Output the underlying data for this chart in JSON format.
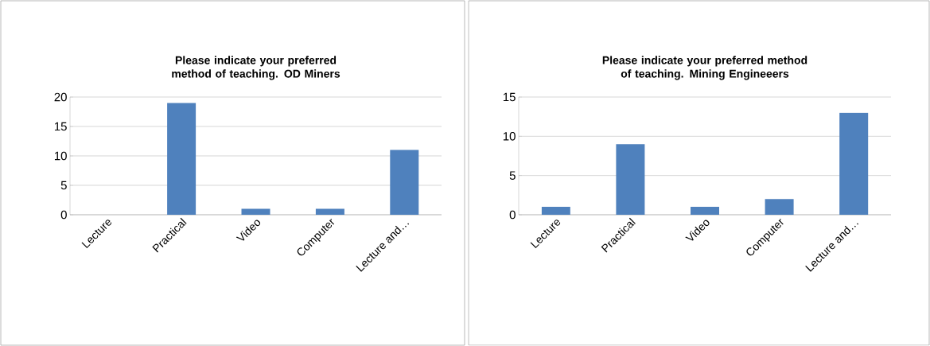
{
  "chart_data": [
    {
      "type": "bar",
      "title": "Please indicate your preferred method of teaching. OD Miners",
      "categories": [
        "Lecture",
        "Practical",
        "Video",
        "Computer",
        "Lecture and…"
      ],
      "values": [
        0,
        19,
        1,
        1,
        11
      ],
      "color": "#4f81bd",
      "ylim": [
        0,
        20
      ],
      "yticks": [
        0,
        5,
        10,
        15,
        20
      ],
      "grid": "y"
    },
    {
      "type": "bar",
      "title": "Please indicate your preferred method of teaching. Mining Engineeers",
      "categories": [
        "Lecture",
        "Practical",
        "Video",
        "Computer",
        "Lecture and…"
      ],
      "values": [
        1,
        9,
        1,
        2,
        13
      ],
      "color": "#4f81bd",
      "ylim": [
        0,
        15
      ],
      "yticks": [
        0,
        5,
        10,
        15
      ],
      "grid": "y"
    }
  ]
}
